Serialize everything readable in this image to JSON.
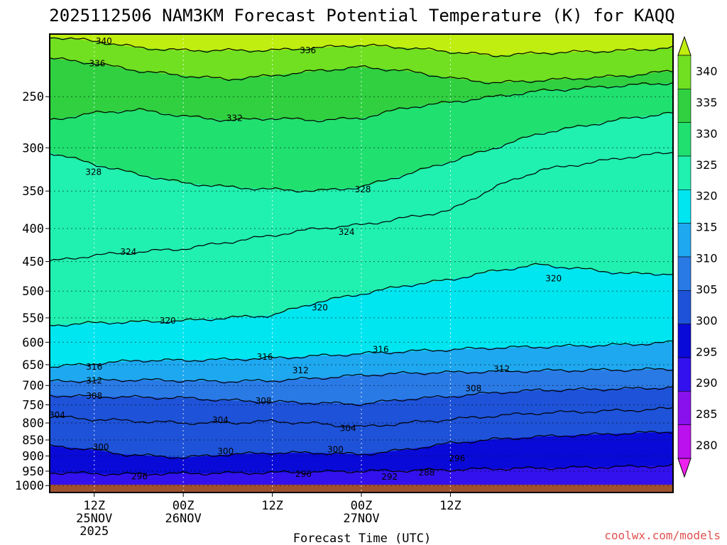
{
  "title": "2025112506 NAM3KM Forecast Potential Temperature (K) for KAQQ",
  "credit": "coolwx.com/models",
  "chart_data": {
    "type": "heatmap",
    "title": "2025112506 NAM3KM Forecast Potential Temperature (K) for KAQQ",
    "xlabel": "Forecast Time (UTC)",
    "ylabel": "",
    "y_scale": "log",
    "y_inverted": true,
    "x_hours_range": [
      6,
      90
    ],
    "y_range_hpa": [
      1025,
      200
    ],
    "y_ticks": [
      250,
      300,
      350,
      400,
      450,
      500,
      550,
      600,
      650,
      700,
      750,
      800,
      850,
      900,
      950,
      1000
    ],
    "x_ticks": [
      {
        "hour": 12,
        "label": [
          "12Z",
          "25NOV",
          "2025"
        ]
      },
      {
        "hour": 24,
        "label": [
          "00Z",
          "26NOV"
        ]
      },
      {
        "hour": 36,
        "label": [
          "12Z",
          ""
        ]
      },
      {
        "hour": 48,
        "label": [
          "00Z",
          "27NOV"
        ]
      },
      {
        "hour": 60,
        "label": [
          "12Z",
          ""
        ]
      }
    ],
    "colorbar": {
      "levels": [
        280,
        285,
        290,
        295,
        300,
        305,
        310,
        315,
        320,
        325,
        330,
        335,
        340
      ],
      "colors": [
        "#ee22ee",
        "#bb11ee",
        "#8811ee",
        "#3311ee",
        "#0a0ad8",
        "#1e52d8",
        "#2a7ae6",
        "#1ea8f0",
        "#00e6f0",
        "#20f0b0",
        "#20e070",
        "#30d040",
        "#70e020",
        "#c0ee10"
      ]
    },
    "series": [
      {
        "level": 296,
        "values": [
          [
            6,
            955
          ],
          [
            15,
            960
          ],
          [
            24,
            958
          ],
          [
            36,
            955
          ],
          [
            48,
            950
          ],
          [
            54,
            948
          ],
          [
            60,
            945
          ],
          [
            66,
            942
          ],
          [
            72,
            940
          ],
          [
            84,
            935
          ],
          [
            90,
            932
          ]
        ]
      },
      {
        "level": 300,
        "values": [
          [
            6,
            868
          ],
          [
            12,
            880
          ],
          [
            16,
            895
          ],
          [
            24,
            905
          ],
          [
            30,
            895
          ],
          [
            36,
            890
          ],
          [
            42,
            890
          ],
          [
            48,
            895
          ],
          [
            54,
            880
          ],
          [
            60,
            860
          ],
          [
            66,
            848
          ],
          [
            72,
            840
          ],
          [
            84,
            830
          ],
          [
            90,
            825
          ]
        ]
      },
      {
        "level": 304,
        "values": [
          [
            6,
            782
          ],
          [
            12,
            790
          ],
          [
            18,
            795
          ],
          [
            24,
            800
          ],
          [
            30,
            800
          ],
          [
            36,
            795
          ],
          [
            42,
            802
          ],
          [
            48,
            812
          ],
          [
            54,
            800
          ],
          [
            60,
            790
          ],
          [
            66,
            780
          ],
          [
            72,
            772
          ],
          [
            84,
            765
          ],
          [
            90,
            760
          ]
        ]
      },
      {
        "level": 308,
        "values": [
          [
            6,
            725
          ],
          [
            12,
            728
          ],
          [
            18,
            730
          ],
          [
            24,
            732
          ],
          [
            30,
            738
          ],
          [
            36,
            742
          ],
          [
            42,
            745
          ],
          [
            48,
            748
          ],
          [
            54,
            735
          ],
          [
            60,
            728
          ],
          [
            66,
            718
          ],
          [
            72,
            712
          ],
          [
            84,
            708
          ],
          [
            90,
            705
          ]
        ]
      },
      {
        "level": 312,
        "values": [
          [
            6,
            690
          ],
          [
            12,
            688
          ],
          [
            18,
            686
          ],
          [
            24,
            688
          ],
          [
            30,
            690
          ],
          [
            36,
            688
          ],
          [
            42,
            682
          ],
          [
            48,
            675
          ],
          [
            54,
            670
          ],
          [
            60,
            668
          ],
          [
            66,
            666
          ],
          [
            72,
            664
          ],
          [
            84,
            662
          ],
          [
            90,
            660
          ]
        ]
      },
      {
        "level": 316,
        "values": [
          [
            6,
            655
          ],
          [
            12,
            648
          ],
          [
            18,
            640
          ],
          [
            24,
            640
          ],
          [
            30,
            638
          ],
          [
            36,
            635
          ],
          [
            42,
            630
          ],
          [
            48,
            625
          ],
          [
            54,
            620
          ],
          [
            60,
            616
          ],
          [
            66,
            612
          ],
          [
            72,
            610
          ],
          [
            84,
            605
          ],
          [
            90,
            600
          ]
        ]
      },
      {
        "level": 320,
        "values": [
          [
            6,
            565
          ],
          [
            12,
            560
          ],
          [
            18,
            558
          ],
          [
            24,
            556
          ],
          [
            30,
            550
          ],
          [
            36,
            545
          ],
          [
            42,
            520
          ],
          [
            48,
            505
          ],
          [
            54,
            490
          ],
          [
            60,
            480
          ],
          [
            66,
            465
          ],
          [
            72,
            455
          ],
          [
            84,
            470
          ],
          [
            90,
            470
          ]
        ]
      },
      {
        "level": 324,
        "values": [
          [
            6,
            450
          ],
          [
            12,
            440
          ],
          [
            18,
            435
          ],
          [
            24,
            430
          ],
          [
            30,
            420
          ],
          [
            36,
            410
          ],
          [
            42,
            400
          ],
          [
            48,
            395
          ],
          [
            54,
            385
          ],
          [
            60,
            375
          ],
          [
            66,
            345
          ],
          [
            72,
            325
          ],
          [
            84,
            310
          ],
          [
            90,
            305
          ]
        ]
      },
      {
        "level": 328,
        "values": [
          [
            6,
            305
          ],
          [
            12,
            318
          ],
          [
            18,
            330
          ],
          [
            24,
            340
          ],
          [
            30,
            345
          ],
          [
            36,
            348
          ],
          [
            42,
            350
          ],
          [
            48,
            345
          ],
          [
            54,
            330
          ],
          [
            60,
            315
          ],
          [
            66,
            300
          ],
          [
            72,
            285
          ],
          [
            84,
            270
          ],
          [
            90,
            265
          ]
        ]
      },
      {
        "level": 332,
        "values": [
          [
            6,
            272
          ],
          [
            12,
            265
          ],
          [
            18,
            262
          ],
          [
            24,
            268
          ],
          [
            30,
            272
          ],
          [
            36,
            270
          ],
          [
            42,
            272
          ],
          [
            48,
            270
          ],
          [
            54,
            260
          ],
          [
            60,
            255
          ],
          [
            66,
            250
          ],
          [
            72,
            245
          ],
          [
            84,
            240
          ],
          [
            90,
            238
          ]
        ]
      },
      {
        "level": 336,
        "values": [
          [
            6,
            218
          ],
          [
            12,
            222
          ],
          [
            18,
            228
          ],
          [
            24,
            232
          ],
          [
            30,
            235
          ],
          [
            36,
            232
          ],
          [
            42,
            228
          ],
          [
            48,
            225
          ],
          [
            54,
            228
          ],
          [
            60,
            234
          ],
          [
            66,
            238
          ],
          [
            72,
            236
          ],
          [
            84,
            232
          ],
          [
            90,
            228
          ]
        ]
      },
      {
        "level": 340,
        "values": [
          [
            6,
            202
          ],
          [
            12,
            205
          ],
          [
            18,
            210
          ],
          [
            24,
            212
          ],
          [
            30,
            212
          ],
          [
            36,
            212
          ],
          [
            42,
            210
          ],
          [
            48,
            208
          ],
          [
            54,
            210
          ],
          [
            60,
            213
          ],
          [
            66,
            216
          ],
          [
            72,
            214
          ],
          [
            84,
            212
          ],
          [
            90,
            210
          ]
        ]
      }
    ],
    "contour_labels": [
      {
        "text": "340",
        "x": 13.3,
        "y": 205
      },
      {
        "text": "336",
        "x": 12.4,
        "y": 222
      },
      {
        "text": "336",
        "x": 40.8,
        "y": 212
      },
      {
        "text": "332",
        "x": 30.9,
        "y": 270
      },
      {
        "text": "328",
        "x": 11.9,
        "y": 327
      },
      {
        "text": "328",
        "x": 48.2,
        "y": 348
      },
      {
        "text": "324",
        "x": 46.0,
        "y": 405
      },
      {
        "text": "324",
        "x": 16.6,
        "y": 435
      },
      {
        "text": "320",
        "x": 73.9,
        "y": 478
      },
      {
        "text": "320",
        "x": 42.4,
        "y": 530
      },
      {
        "text": "320",
        "x": 21.9,
        "y": 556
      },
      {
        "text": "316",
        "x": 50.6,
        "y": 616
      },
      {
        "text": "316",
        "x": 35.0,
        "y": 632
      },
      {
        "text": "316",
        "x": 12.0,
        "y": 655
      },
      {
        "text": "312",
        "x": 39.8,
        "y": 663
      },
      {
        "text": "312",
        "x": 66.9,
        "y": 660
      },
      {
        "text": "312",
        "x": 12.0,
        "y": 688
      },
      {
        "text": "308",
        "x": 12.0,
        "y": 727
      },
      {
        "text": "308",
        "x": 34.8,
        "y": 740
      },
      {
        "text": "308",
        "x": 63.1,
        "y": 708
      },
      {
        "text": "304",
        "x": 7.0,
        "y": 778
      },
      {
        "text": "304",
        "x": 29.0,
        "y": 792
      },
      {
        "text": "304",
        "x": 46.2,
        "y": 815
      },
      {
        "text": "300",
        "x": 12.9,
        "y": 872
      },
      {
        "text": "300",
        "x": 29.7,
        "y": 885
      },
      {
        "text": "300",
        "x": 44.5,
        "y": 880
      },
      {
        "text": "296",
        "x": 18.1,
        "y": 968
      },
      {
        "text": "296",
        "x": 40.2,
        "y": 960
      },
      {
        "text": "296",
        "x": 60.9,
        "y": 908
      },
      {
        "text": "292",
        "x": 51.8,
        "y": 970
      },
      {
        "text": "288",
        "x": 56.8,
        "y": 955
      }
    ],
    "grid": true,
    "legend": "colorbar-right",
    "ground_color": "#a0522d"
  }
}
